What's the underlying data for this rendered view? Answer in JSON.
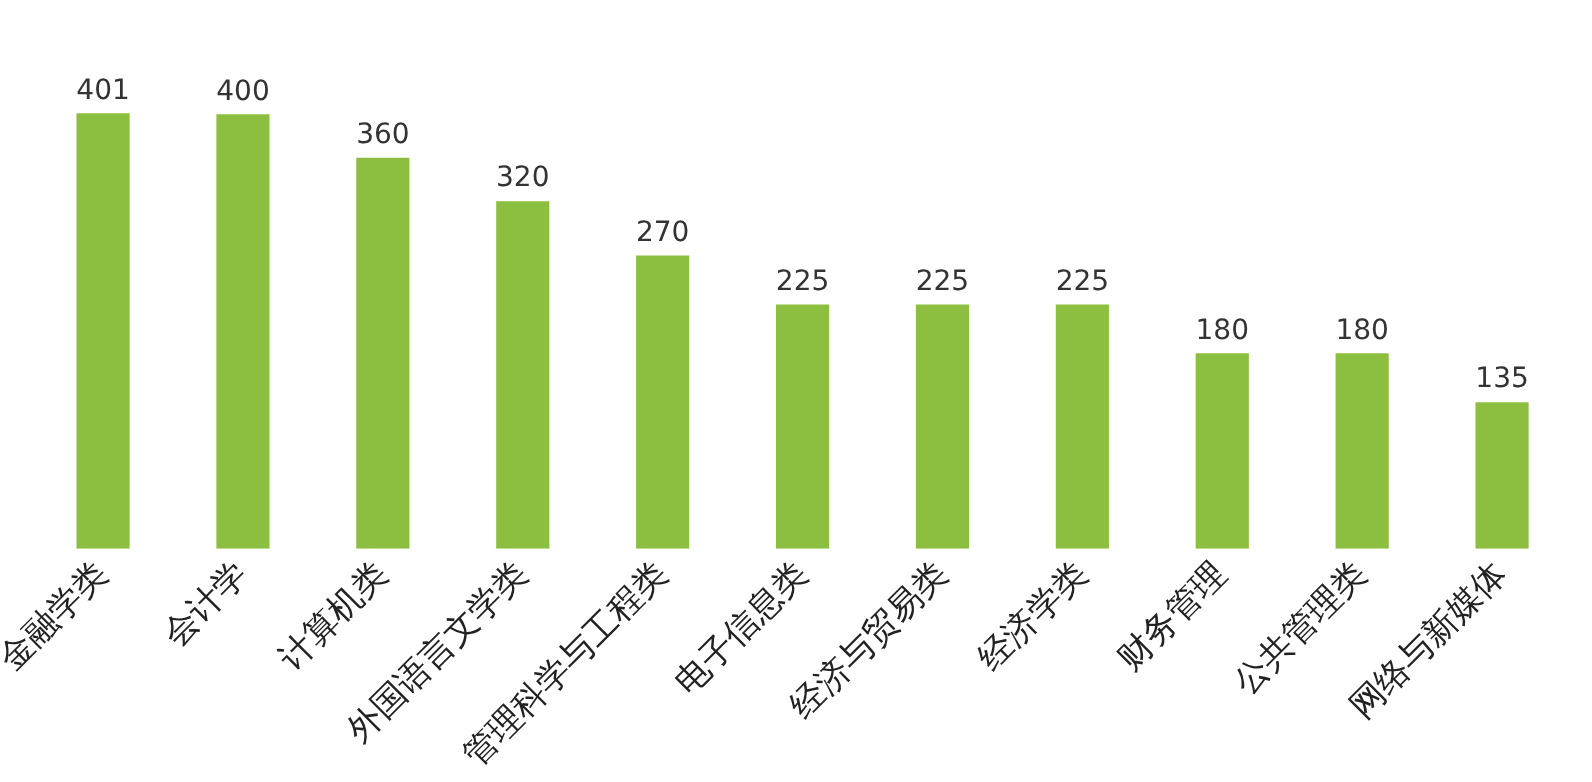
{
  "chart_data": {
    "type": "bar",
    "categories": [
      "金融学类",
      "会计学",
      "计算机类",
      "外国语言文学类",
      "管理科学与工程类",
      "电子信息类",
      "经济与贸易类",
      "经济学类",
      "财务管理",
      "公共管理类",
      "网络与新媒体"
    ],
    "values": [
      401,
      400,
      360,
      320,
      270,
      225,
      225,
      225,
      180,
      180,
      135
    ],
    "color": "#8cbf3f",
    "data_labels": true,
    "grid": false,
    "legend": false,
    "tick_labels": "x"
  }
}
